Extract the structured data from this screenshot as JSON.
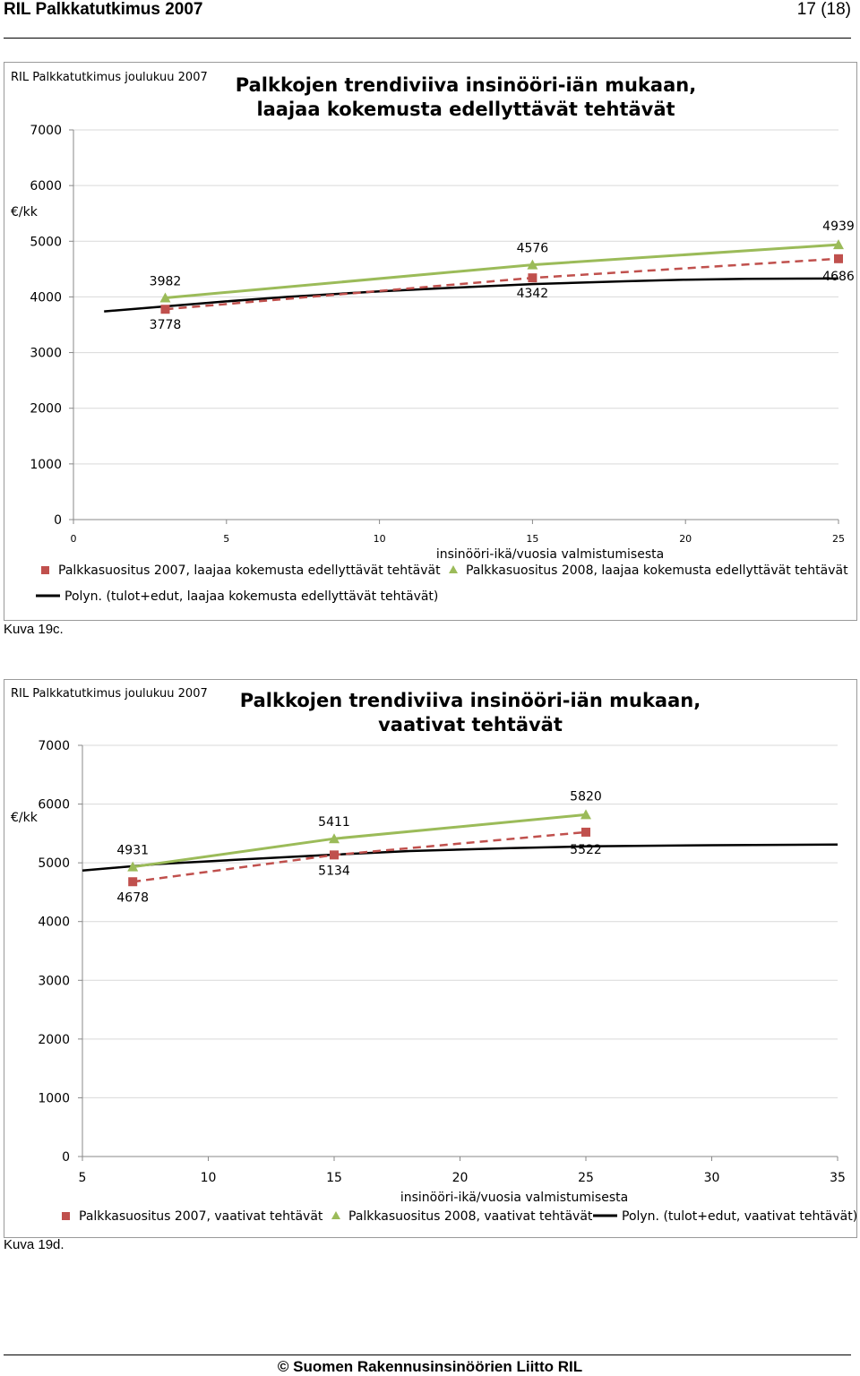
{
  "header": {
    "left": "RIL Palkkatutkimus 2007",
    "right": "17 (18)"
  },
  "footer": {
    "text": "© Suomen Rakennusinsinöörien Liitto RIL"
  },
  "captions": [
    "Kuva 19c.",
    "Kuva 19d."
  ],
  "colors": {
    "series2007": "#c0504d",
    "series2008": "#9bbb59",
    "polyn": "#000000",
    "grid": "#d9d9d9"
  },
  "chart_data": [
    {
      "type": "line",
      "source": "RIL Palkkatutkimus joulukuu 2007",
      "title_lines": [
        "Palkkojen trendiviiva insinööri-iän mukaan,",
        "laajaa kokemusta edellyttävät tehtävät"
      ],
      "ylabel": "€/kk",
      "xlabel": "insinööri-ikä/vuosia valmistumisesta",
      "xlim": [
        0,
        25
      ],
      "xticks": [
        0,
        5,
        10,
        15,
        20,
        25
      ],
      "ylim": [
        0,
        7000
      ],
      "yticks": [
        0,
        1000,
        2000,
        3000,
        4000,
        5000,
        6000,
        7000
      ],
      "grid": "horizontal",
      "legend_position": "bottom",
      "series": [
        {
          "name": "Palkkasuositus 2007, laajaa kokemusta edellyttävät tehtävät",
          "marker": "square",
          "line": "dashed",
          "x": [
            3,
            15,
            25
          ],
          "y": [
            3778,
            4342,
            4686
          ]
        },
        {
          "name": "Palkkasuositus 2008, laajaa kokemusta edellyttävät tehtävät",
          "marker": "triangle",
          "line": "solid",
          "x": [
            3,
            15,
            25
          ],
          "y": [
            3982,
            4576,
            4939
          ]
        },
        {
          "name": "Polyn. (tulot+edut, laajaa kokemusta edellyttävät tehtävät)",
          "marker": "none",
          "line": "solid",
          "x": [
            1,
            3,
            5,
            7,
            10,
            13,
            15,
            18,
            20,
            22,
            25
          ],
          "y": [
            3740,
            3830,
            3920,
            4000,
            4100,
            4180,
            4230,
            4280,
            4310,
            4325,
            4330
          ]
        }
      ]
    },
    {
      "type": "line",
      "source": "RIL Palkkatutkimus joulukuu 2007",
      "title_lines": [
        "Palkkojen trendiviiva insinööri-iän mukaan,",
        "vaativat tehtävät"
      ],
      "ylabel": "€/kk",
      "xlabel": "insinööri-ikä/vuosia valmistumisesta",
      "xlim": [
        5,
        35
      ],
      "xticks": [
        5,
        10,
        15,
        20,
        25,
        30,
        35
      ],
      "ylim": [
        0,
        7000
      ],
      "yticks": [
        0,
        1000,
        2000,
        3000,
        4000,
        5000,
        6000,
        7000
      ],
      "grid": "horizontal",
      "legend_position": "bottom",
      "series": [
        {
          "name": "Palkkasuositus 2007, vaativat tehtävät",
          "marker": "square",
          "line": "dashed",
          "x": [
            7,
            15,
            25
          ],
          "y": [
            4678,
            5134,
            5522
          ]
        },
        {
          "name": "Palkkasuositus 2008, vaativat tehtävät",
          "marker": "triangle",
          "line": "solid",
          "x": [
            7,
            15,
            25
          ],
          "y": [
            4931,
            5411,
            5820
          ]
        },
        {
          "name": "Polyn. (tulot+edut, vaativat tehtävät)",
          "marker": "none",
          "line": "solid",
          "x": [
            5,
            8,
            11,
            15,
            18,
            22,
            25,
            30,
            35
          ],
          "y": [
            4870,
            4980,
            5050,
            5140,
            5200,
            5250,
            5280,
            5300,
            5310
          ]
        }
      ]
    }
  ]
}
